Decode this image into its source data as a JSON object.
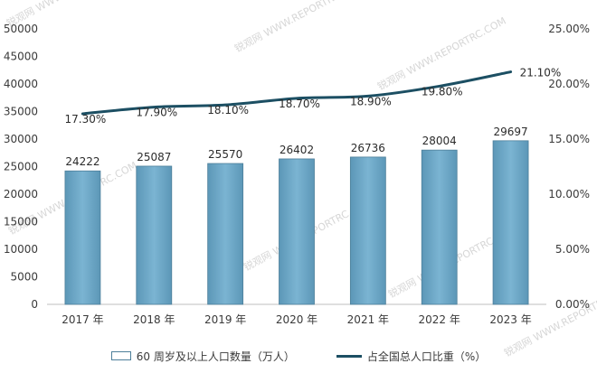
{
  "chart_data": {
    "type": "bar",
    "categories": [
      "2017 年",
      "2018 年",
      "2019 年",
      "2020 年",
      "2021 年",
      "2022 年",
      "2023 年"
    ],
    "series": [
      {
        "name": "60 周岁及以上人口数量（万人）",
        "type": "bar",
        "axis": "left",
        "values": [
          24222,
          25087,
          25570,
          26402,
          26736,
          28004,
          29697
        ],
        "labels": [
          "24222",
          "25087",
          "25570",
          "26402",
          "26736",
          "28004",
          "29697"
        ],
        "color": "#6aa6c6"
      },
      {
        "name": "占全国总人口比重（%）",
        "type": "line",
        "axis": "right",
        "values": [
          17.3,
          17.9,
          18.1,
          18.7,
          18.9,
          19.8,
          21.1
        ],
        "labels": [
          "17.30%",
          "17.90%",
          "18.10%",
          "18.70%",
          "18.90%",
          "19.80%",
          "21.10%"
        ],
        "color": "#1c4f63"
      }
    ],
    "ylim": [
      0,
      50000
    ],
    "y2lim": [
      0,
      25
    ],
    "y_ticks": [
      "0",
      "5000",
      "10000",
      "15000",
      "20000",
      "25000",
      "30000",
      "35000",
      "40000",
      "45000",
      "50000"
    ],
    "y2_ticks": [
      "0.00%",
      "5.00%",
      "10.00%",
      "15.00%",
      "20.00%",
      "25.00%"
    ],
    "grid": false,
    "legend_position": "bottom"
  },
  "watermark": "锐观网 WWW.REPORTRC.COM"
}
